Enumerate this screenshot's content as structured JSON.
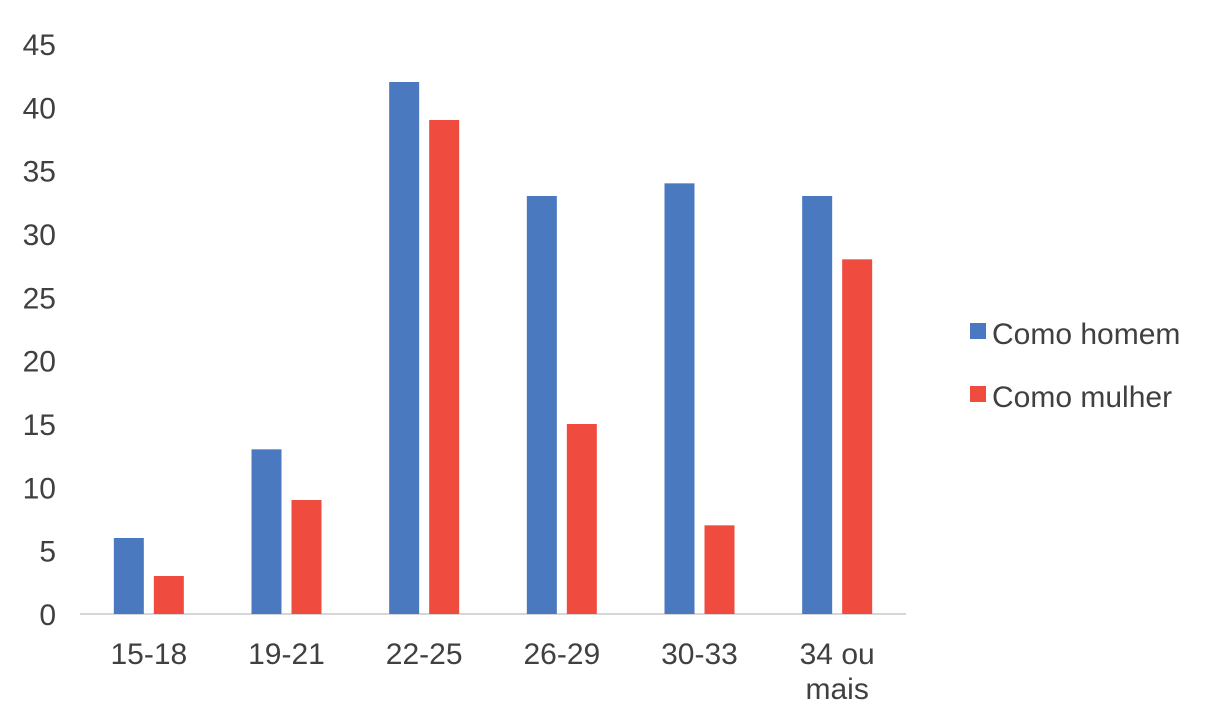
{
  "chart_data": {
    "type": "bar",
    "title": "",
    "xlabel": "",
    "ylabel": "",
    "categories": [
      "15-18",
      "19-21",
      "22-25",
      "26-29",
      "30-33",
      "34 ou mais"
    ],
    "series": [
      {
        "name": "Como homem",
        "color": "#4a79c0",
        "values": [
          6,
          13,
          42,
          33,
          34,
          33
        ]
      },
      {
        "name": "Como mulher",
        "color": "#ef4b3f",
        "values": [
          3,
          9,
          39,
          15,
          7,
          28
        ]
      }
    ],
    "ylim": [
      0,
      45
    ],
    "yticks": [
      0,
      5,
      10,
      15,
      20,
      25,
      30,
      35,
      40,
      45
    ],
    "grid": false,
    "legend_position": "right"
  }
}
